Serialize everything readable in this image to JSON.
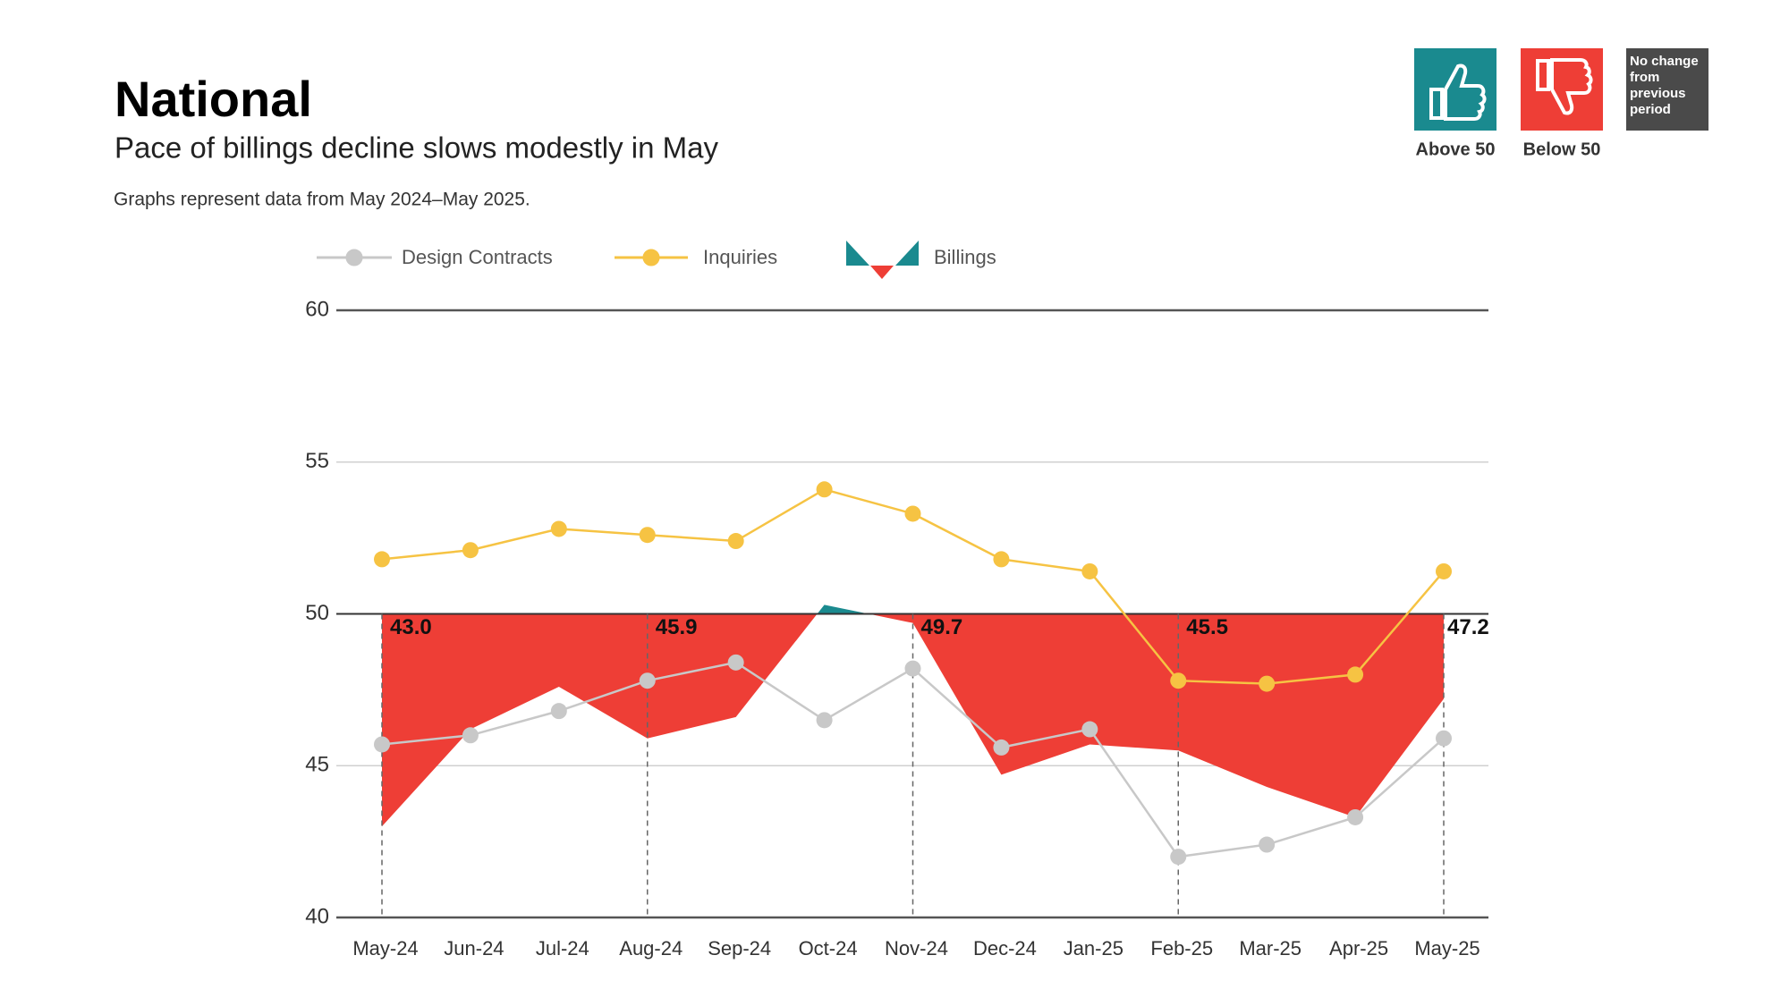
{
  "header": {
    "title": "National",
    "subtitle": "Pace of billings decline slows modestly in May",
    "note": "Graphs represent data from May 2024–May 2025."
  },
  "status_legend": [
    {
      "label": "Above 50",
      "color": "#1a8a8f"
    },
    {
      "label": "Below 50",
      "color": "#ee3e36"
    },
    {
      "label": "No change from previous period",
      "color": "#4a4a4a"
    }
  ],
  "chart_data": {
    "type": "line",
    "categories": [
      "May-24",
      "Jun-24",
      "Jul-24",
      "Aug-24",
      "Sep-24",
      "Oct-24",
      "Nov-24",
      "Dec-24",
      "Jan-25",
      "Feb-25",
      "Mar-25",
      "Apr-25",
      "May-25"
    ],
    "series": [
      {
        "name": "Design Contracts",
        "color": "#c8c8c8",
        "values": [
          45.7,
          46.0,
          46.8,
          47.8,
          48.4,
          46.5,
          48.2,
          45.6,
          46.2,
          42.0,
          42.4,
          43.3,
          45.9
        ]
      },
      {
        "name": "Inquiries",
        "color": "#f6c343",
        "values": [
          51.8,
          52.1,
          52.8,
          52.6,
          52.4,
          54.1,
          53.3,
          51.8,
          51.4,
          47.8,
          47.7,
          48.0,
          51.4
        ]
      },
      {
        "name": "Billings",
        "style": "area",
        "colors": {
          "above": "#1a8a8f",
          "below": "#ee3e36"
        },
        "values": [
          43.0,
          46.2,
          47.6,
          45.9,
          46.6,
          50.3,
          49.7,
          44.7,
          45.7,
          45.5,
          44.3,
          43.3,
          47.2
        ],
        "value_labels": [
          "43.0",
          null,
          null,
          "45.9",
          null,
          null,
          "49.7",
          null,
          null,
          "45.5",
          null,
          null,
          "47.2"
        ]
      }
    ],
    "area_baseline": 50,
    "ylim": [
      40,
      60
    ],
    "yticks": [
      40,
      45,
      50,
      55,
      60
    ],
    "grid": true
  }
}
